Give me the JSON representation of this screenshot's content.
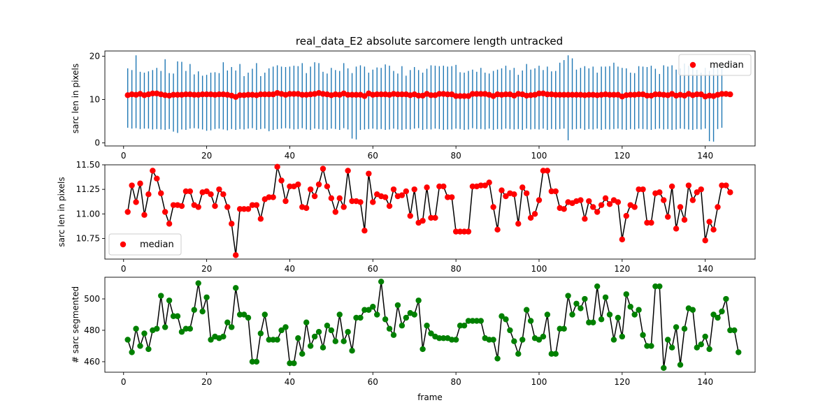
{
  "title": "real_data_E2 absolute sarcomere length untracked",
  "chart_data": [
    {
      "type": "scatter",
      "panel": "top",
      "ylabel": "sarc len in pixels",
      "xlim": [
        -4.5,
        152
      ],
      "ylim": [
        -0.7,
        21.2
      ],
      "xticks": [
        0,
        20,
        40,
        60,
        80,
        100,
        120,
        140
      ],
      "yticks": [
        0,
        10,
        20
      ],
      "legend": {
        "placement": "upper-right",
        "label": "median"
      },
      "colors": {
        "bars": "#1f77b4",
        "median": "#ff0000"
      },
      "frames_start": 1,
      "median": [
        11.0,
        11.2,
        11.1,
        11.3,
        11.0,
        11.2,
        11.4,
        11.4,
        11.2,
        11.0,
        10.9,
        11.1,
        11.1,
        11.1,
        11.2,
        11.2,
        11.1,
        11.1,
        11.2,
        11.2,
        11.2,
        11.1,
        11.2,
        11.2,
        11.1,
        10.9,
        10.6,
        11.0,
        11.0,
        11.1,
        11.1,
        11.0,
        11.2,
        11.2,
        11.2,
        11.2,
        11.5,
        11.3,
        11.1,
        11.3,
        11.3,
        11.3,
        11.1,
        11.1,
        11.2,
        11.3,
        11.5,
        11.3,
        11.2,
        11.0,
        11.2,
        11.1,
        11.4,
        11.1,
        11.1,
        11.1,
        11.1,
        10.8,
        11.4,
        11.1,
        11.2,
        11.2,
        11.2,
        11.1,
        11.3,
        11.2,
        11.2,
        11.2,
        11.0,
        11.2,
        10.9,
        10.9,
        11.3,
        11.0,
        11.0,
        11.3,
        11.3,
        11.2,
        11.2,
        10.8,
        10.8,
        10.8,
        10.8,
        11.3,
        11.3,
        11.3,
        11.3,
        11.1,
        10.8,
        11.2,
        11.1,
        11.2,
        11.2,
        10.9,
        11.3,
        11.2,
        10.9,
        11.0,
        11.1,
        11.4,
        11.4,
        11.2,
        11.2,
        11.1,
        11.1,
        11.1,
        11.1,
        11.1,
        11.1,
        11.1,
        11.0,
        11.1,
        11.1,
        11.0,
        11.1,
        11.2,
        11.1,
        11.1,
        11.1,
        10.7,
        11.0,
        11.1,
        11.1,
        11.2,
        11.2,
        10.9,
        10.9,
        11.2,
        11.2,
        11.1,
        11.0,
        11.3,
        10.9,
        11.1,
        10.9,
        11.3,
        11.0,
        11.2,
        11.2,
        10.7,
        10.9,
        10.8,
        11.1,
        11.3,
        11.3,
        11.2
      ],
      "range_low": [
        3.5,
        3.3,
        3.4,
        3.2,
        3.3,
        3.3,
        3.1,
        3.2,
        3.1,
        3.0,
        3.2,
        2.6,
        2.3,
        3.1,
        3.0,
        3.3,
        3.4,
        3.3,
        3.1,
        2.8,
        2.9,
        3.2,
        3.3,
        3.1,
        2.9,
        3.2,
        3.0,
        3.2,
        3.1,
        3.3,
        3.4,
        3.0,
        3.2,
        3.3,
        2.7,
        3.0,
        3.2,
        3.3,
        3.4,
        3.3,
        3.1,
        3.2,
        3.4,
        3.1,
        3.0,
        3.3,
        3.2,
        3.1,
        3.0,
        3.3,
        3.2,
        3.0,
        3.4,
        3.1,
        1.0,
        0.8,
        3.0,
        3.1,
        3.2,
        3.3,
        3.1,
        3.2,
        3.0,
        3.1,
        3.3,
        3.1,
        3.0,
        3.2,
        3.1,
        3.3,
        3.4,
        3.0,
        3.2,
        3.1,
        3.3,
        3.2,
        3.0,
        3.1,
        3.1,
        3.3,
        3.2,
        3.0,
        3.1,
        3.4,
        3.2,
        3.2,
        3.1,
        3.3,
        3.0,
        3.2,
        3.1,
        3.3,
        3.2,
        3.1,
        3.2,
        3.0,
        3.3,
        3.1,
        3.2,
        3.1,
        3.3,
        3.0,
        3.2,
        3.1,
        3.2,
        3.3,
        0.6,
        3.1,
        3.2,
        3.3,
        3.0,
        3.2,
        3.1,
        3.3,
        3.0,
        3.2,
        3.1,
        3.2,
        3.3,
        3.1,
        3.0,
        3.2,
        3.1,
        3.3,
        3.2,
        3.1,
        3.0,
        3.2,
        3.3,
        3.1,
        3.2,
        3.0,
        3.1,
        3.3,
        3.2,
        3.1,
        3.0,
        3.2,
        3.1,
        3.3,
        0.4,
        0.3,
        3.2,
        3.5
      ],
      "range_high": [
        17.2,
        16.8,
        20.2,
        16.4,
        16.2,
        16.5,
        16.8,
        17.3,
        16.6,
        19.3,
        16.1,
        16.0,
        18.8,
        18.7,
        16.6,
        18.2,
        15.8,
        16.5,
        15.5,
        15.7,
        16.2,
        16.3,
        16.1,
        18.6,
        16.7,
        17.5,
        16.7,
        18.2,
        15.4,
        16.2,
        17.1,
        18.4,
        15.4,
        16.2,
        17.2,
        17.6,
        17.9,
        17.6,
        17.5,
        17.6,
        17.8,
        17.7,
        18.4,
        16.1,
        17.6,
        18.6,
        18.4,
        16.4,
        16.0,
        17.3,
        16.8,
        16.6,
        18.4,
        17.2,
        16.1,
        17.6,
        17.9,
        17.6,
        16.2,
        16.9,
        17.4,
        17.3,
        18.1,
        17.8,
        16.6,
        16.0,
        17.7,
        15.5,
        16.8,
        17.5,
        16.8,
        16.2,
        17.1,
        17.9,
        17.8,
        17.7,
        17.8,
        17.6,
        17.7,
        18.0,
        16.3,
        16.2,
        16.6,
        16.9,
        16.4,
        17.3,
        16.2,
        16.0,
        16.6,
        16.9,
        17.2,
        17.8,
        16.8,
        17.3,
        15.7,
        16.7,
        18.2,
        16.9,
        17.2,
        17.8,
        16.8,
        17.6,
        16.5,
        16.6,
        18.5,
        19.1,
        20.2,
        19.5,
        16.9,
        17.3,
        17.7,
        17.2,
        17.6,
        16.2,
        17.6,
        17.6,
        17.7,
        18.5,
        17.6,
        17.3,
        17.2,
        16.2,
        16.1,
        17.7,
        17.6,
        17.5,
        17.8,
        17.1,
        15.9,
        17.9,
        17.6,
        17.9,
        16.9,
        17.2,
        18.3,
        17.8,
        18.7,
        16.9,
        16.2,
        17.3,
        16.6,
        17.6,
        17.3,
        17.4
      ]
    },
    {
      "type": "line",
      "panel": "middle",
      "ylabel": "sarc len in pixels",
      "xlim": [
        -4.5,
        152
      ],
      "ylim": [
        10.54,
        11.5
      ],
      "xticks": [
        0,
        20,
        40,
        60,
        80,
        100,
        120,
        140
      ],
      "yticks": [
        "10.75",
        "11.00",
        "11.25",
        "11.50"
      ],
      "legend": {
        "placement": "lower-left",
        "label": "median"
      },
      "colors": {
        "line": "#000000",
        "markers": "#ff0000"
      },
      "x_start": 1,
      "y": [
        11.02,
        11.29,
        11.12,
        11.31,
        10.99,
        11.2,
        11.44,
        11.36,
        11.21,
        11.02,
        10.9,
        11.09,
        11.09,
        11.08,
        11.23,
        11.23,
        11.09,
        11.07,
        11.22,
        11.23,
        11.2,
        11.08,
        11.25,
        11.2,
        11.07,
        10.9,
        10.58,
        11.05,
        11.05,
        11.05,
        11.09,
        11.09,
        10.95,
        11.15,
        11.17,
        11.17,
        11.48,
        11.34,
        11.13,
        11.28,
        11.28,
        11.3,
        11.07,
        11.06,
        11.25,
        11.18,
        11.3,
        11.46,
        11.28,
        11.16,
        11.02,
        11.16,
        11.07,
        11.44,
        11.13,
        11.13,
        11.12,
        10.83,
        11.41,
        11.12,
        11.2,
        11.18,
        11.17,
        11.08,
        11.25,
        11.18,
        11.19,
        11.23,
        10.98,
        11.25,
        10.91,
        10.93,
        11.27,
        10.96,
        10.96,
        11.28,
        11.28,
        11.17,
        11.17,
        10.82,
        10.82,
        10.82,
        10.82,
        11.28,
        11.28,
        11.29,
        11.29,
        11.32,
        11.07,
        10.84,
        11.24,
        11.18,
        11.21,
        11.2,
        10.9,
        11.27,
        11.21,
        10.96,
        11.0,
        11.14,
        11.44,
        11.44,
        11.23,
        11.23,
        11.06,
        11.05,
        11.12,
        11.11,
        11.13,
        11.14,
        10.95,
        11.13,
        11.07,
        11.02,
        11.09,
        11.16,
        11.1,
        11.14,
        11.12,
        10.74,
        10.98,
        11.09,
        11.07,
        11.25,
        11.25,
        10.91,
        10.91,
        11.21,
        11.22,
        11.14,
        10.97,
        11.28,
        10.85,
        11.07,
        10.94,
        11.29,
        11.14,
        11.22,
        11.25,
        10.73,
        10.92,
        10.84,
        11.07,
        11.29,
        11.29,
        11.22
      ]
    },
    {
      "type": "line",
      "panel": "bottom",
      "ylabel": "# sarc segmented",
      "xlabel": "frame",
      "xlim": [
        -4.5,
        152
      ],
      "ylim": [
        453.3,
        513.8
      ],
      "xticks": [
        0,
        20,
        40,
        60,
        80,
        100,
        120,
        140
      ],
      "yticks": [
        460,
        480,
        500
      ],
      "colors": {
        "line": "#000000",
        "markers": "#008000"
      },
      "x_start": 1,
      "y": [
        474,
        466,
        481,
        470,
        478,
        468,
        480,
        481,
        502,
        482,
        499,
        489,
        489,
        479,
        481,
        481,
        493,
        510,
        492,
        501,
        474,
        476,
        475,
        476,
        485,
        482,
        507,
        490,
        490,
        488,
        460,
        460,
        478,
        490,
        474,
        474,
        474,
        480,
        482,
        459,
        459,
        475,
        465,
        485,
        470,
        476,
        479,
        469,
        483,
        480,
        473,
        490,
        473,
        479,
        467,
        488,
        488,
        493,
        493,
        495,
        490,
        511,
        487,
        481,
        477,
        496,
        483,
        488,
        491,
        490,
        499,
        468,
        483,
        478,
        476,
        475,
        475,
        475,
        474,
        474,
        483,
        483,
        486,
        486,
        486,
        486,
        475,
        474,
        474,
        462,
        489,
        487,
        480,
        473,
        465,
        474,
        493,
        486,
        475,
        474,
        476,
        490,
        465,
        465,
        481,
        481,
        502,
        490,
        497,
        494,
        500,
        485,
        485,
        508,
        487,
        501,
        490,
        474,
        488,
        476,
        503,
        495,
        490,
        493,
        477,
        470,
        470,
        508,
        508,
        456,
        474,
        469,
        482,
        458,
        481,
        494,
        493,
        469,
        471,
        476,
        468,
        490,
        488,
        492,
        500,
        480,
        480,
        466
      ]
    }
  ]
}
